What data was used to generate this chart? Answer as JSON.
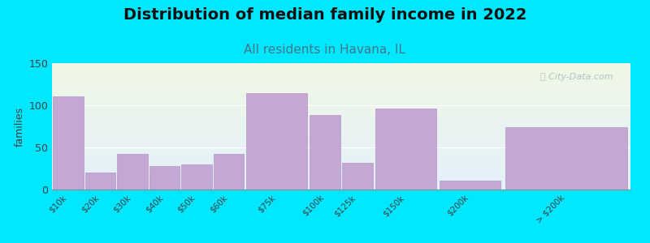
{
  "title": "Distribution of median family income in 2022",
  "subtitle": "All residents in Havana, IL",
  "categories": [
    "$10k",
    "$20k",
    "$30k",
    "$40k",
    "$50k",
    "$60k",
    "$75k",
    "$100k",
    "$125k",
    "$150k",
    "$200k",
    "> $200k"
  ],
  "values": [
    111,
    20,
    42,
    28,
    30,
    42,
    114,
    88,
    32,
    96,
    11,
    74
  ],
  "bar_lefts": [
    0,
    1,
    2,
    3,
    4,
    5,
    6,
    8,
    9,
    10,
    12,
    14
  ],
  "bar_widths": [
    1,
    1,
    1,
    1,
    1,
    1,
    2,
    1,
    1,
    2,
    2,
    4
  ],
  "bar_color": "#c0a0d0",
  "bar_alpha": 0.9,
  "background_outer": "#00e8ff",
  "background_plot_top": "#eef4e4",
  "background_plot_bottom": "#e4eef4",
  "title_fontsize": 14,
  "subtitle_fontsize": 11,
  "subtitle_color": "#447788",
  "ylabel": "families",
  "ylim": [
    0,
    150
  ],
  "yticks": [
    0,
    50,
    100,
    150
  ],
  "watermark": "ⓘ City-Data.com",
  "watermark_color": "#aab8c0",
  "tick_label_fontsize": 7.5,
  "tick_positions": [
    0.5,
    1.5,
    2.5,
    3.5,
    4.5,
    5.5,
    7,
    8.5,
    9.5,
    11,
    13,
    16
  ],
  "bar_edge_color": "#b090c8",
  "xlim": [
    0,
    18
  ]
}
